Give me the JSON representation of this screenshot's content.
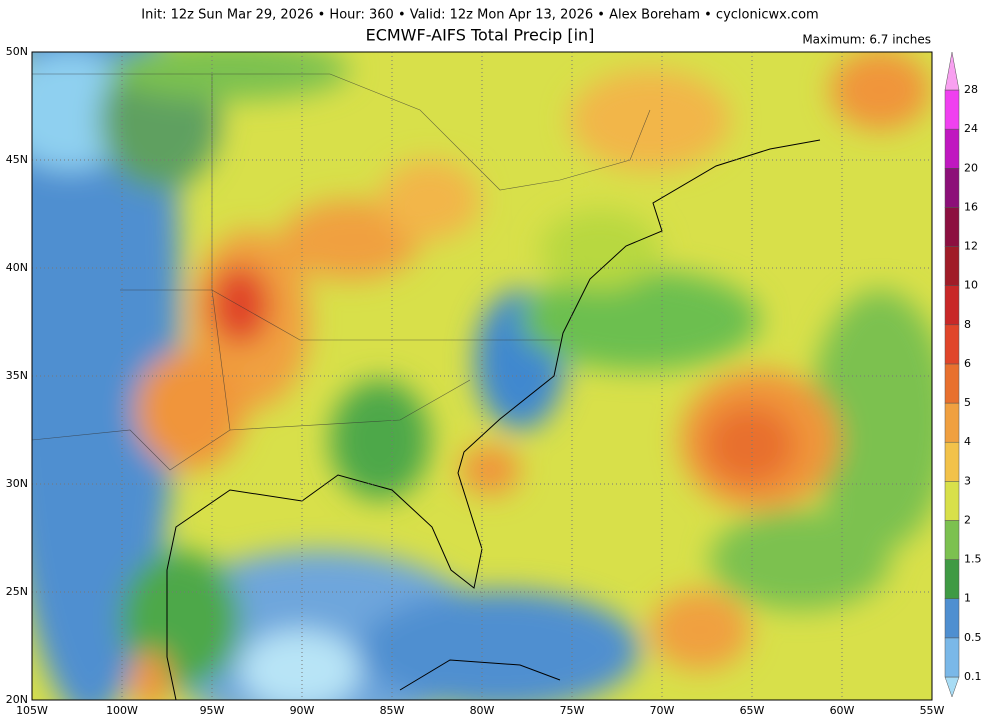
{
  "header": {
    "info": "Init: 12z Sun Mar 29, 2026 • Hour: 360 • Valid: 12z Mon Apr 13, 2026 • Alex Boreham • cyclonicwx.com",
    "title": "ECMWF-AIFS Total Precip [in]",
    "maximum": "Maximum: 6.7 inches"
  },
  "axes": {
    "latitude_labels": [
      "50N",
      "45N",
      "40N",
      "35N",
      "30N",
      "25N",
      "20N"
    ],
    "longitude_labels": [
      "105W",
      "100W",
      "95W",
      "90W",
      "85W",
      "80W",
      "75W",
      "70W",
      "65W",
      "60W",
      "55W"
    ]
  },
  "colorbar": {
    "labels": [
      "0.1",
      "0.5",
      "1",
      "1.5",
      "2",
      "3",
      "4",
      "5",
      "6",
      "8",
      "10",
      "12",
      "16",
      "20",
      "24",
      "28"
    ]
  }
}
